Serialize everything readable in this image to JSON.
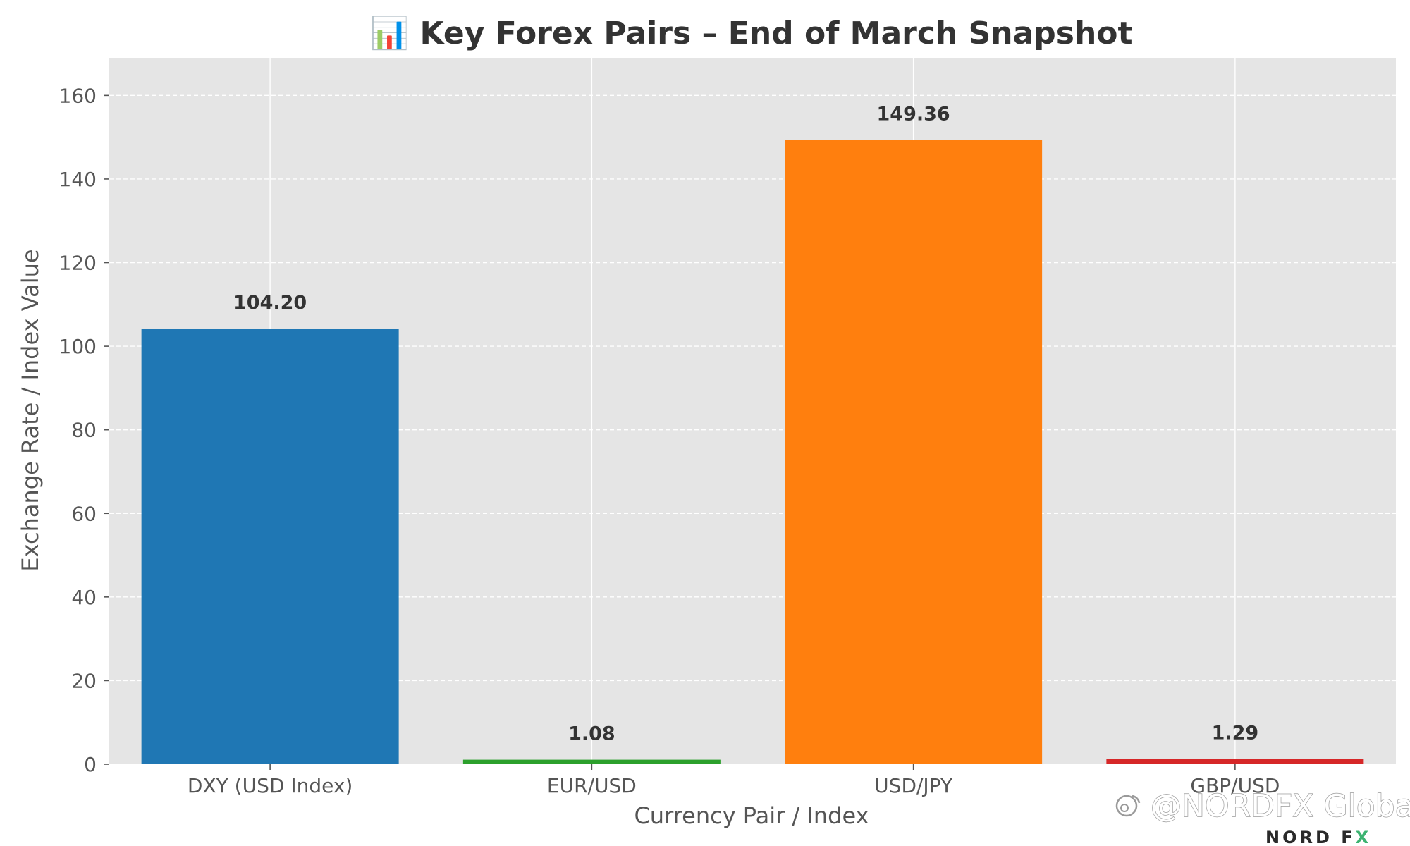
{
  "chart_data": {
    "type": "bar",
    "title": "📊 Key Forex Pairs – End of March Snapshot",
    "xlabel": "Currency Pair / Index",
    "ylabel": "Exchange Rate / Index Value",
    "categories": [
      "DXY (USD Index)",
      "EUR/USD",
      "USD/JPY",
      "GBP/USD"
    ],
    "values": [
      104.2,
      1.08,
      149.36,
      1.29
    ],
    "value_labels": [
      "104.20",
      "1.08",
      "149.36",
      "1.29"
    ],
    "colors": [
      "#1f77b4",
      "#2ca02c",
      "#ff7f0e",
      "#d62728"
    ],
    "ylim": [
      0,
      169
    ],
    "yticks": [
      0,
      20,
      40,
      60,
      80,
      100,
      120,
      140,
      160
    ],
    "grid": true,
    "legend": "none",
    "background_color": "#e5e5e5"
  },
  "watermark": {
    "handle": "@NORDFX Global",
    "icon": "weibo-icon"
  },
  "logo": {
    "brand": "NORD F",
    "brand_mark": "X"
  }
}
